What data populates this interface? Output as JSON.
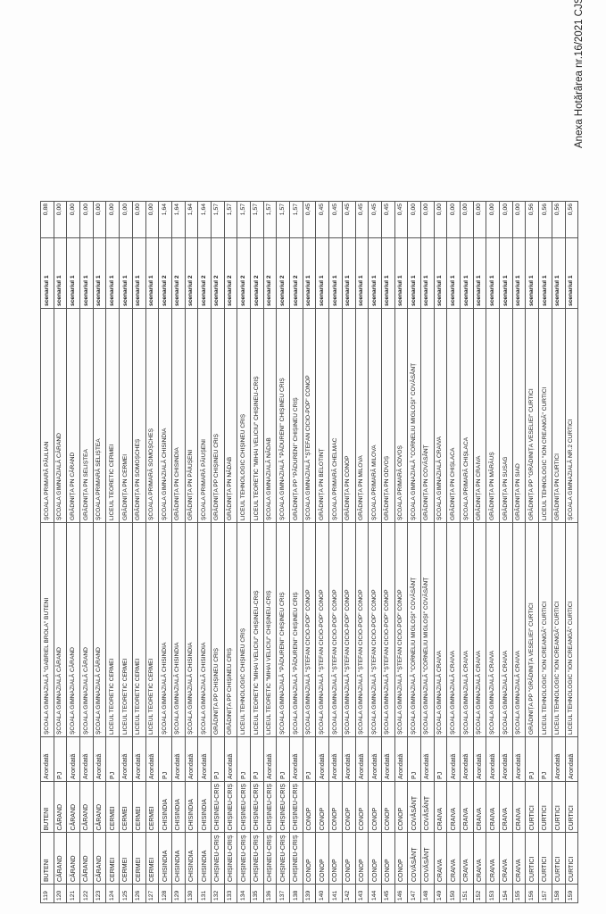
{
  "document": {
    "header_title": "Anexa Hotărârea nr.16/2021 CJSU Arad"
  },
  "table": {
    "rows": [
      [
        "119",
        "BUTENI",
        "BUTENI",
        "Arondată",
        "ȘCOALA GIMNAZIALĂ \"GABRIEL BROLA\" BUTENI",
        "ȘCOALA PRIMARĂ PĂULIAN",
        "scenariul 1",
        "0,88"
      ],
      [
        "120",
        "CĂRAND",
        "CĂRAND",
        "PJ",
        "ȘCOALA GIMNAZIALĂ CĂRAND",
        "ȘCOALA GIMNAZIALĂ CĂRAND",
        "scenariul 1",
        "0,00"
      ],
      [
        "121",
        "CĂRAND",
        "CĂRAND",
        "Arondată",
        "ȘCOALA GIMNAZIALĂ CĂRAND",
        "GRĂDINIȚA PN CĂRAND",
        "scenariul 1",
        "0,00"
      ],
      [
        "122",
        "CĂRAND",
        "CĂRAND",
        "Arondată",
        "ȘCOALA GIMNAZIALĂ CĂRAND",
        "GRĂDINIȚA PN SELIȘTEA",
        "scenariul 1",
        "0,00"
      ],
      [
        "123",
        "CĂRAND",
        "CĂRAND",
        "Arondată",
        "ȘCOALA GIMNAZIALĂ CĂRAND",
        "ȘCOALA PRIMARĂ SELIȘTEA",
        "scenariul 1",
        "0,00"
      ],
      [
        "124",
        "CERMEI",
        "CERMEI",
        "PJ",
        "LICEUL TEORETIC CERMEI",
        "LICEUL TEORETIC CERMEI",
        "scenariul 1",
        "0,00"
      ],
      [
        "125",
        "CERMEI",
        "CERMEI",
        "Arondată",
        "LICEUL TEORETIC CERMEI",
        "GRĂDINIȚA PN CERMEI",
        "scenariul 1",
        "0,00"
      ],
      [
        "126",
        "CERMEI",
        "CERMEI",
        "Arondată",
        "LICEUL TEORETIC CERMEI",
        "GRĂDINIȚA PN SOMOȘCHEȘ",
        "scenariul 1",
        "0,00"
      ],
      [
        "127",
        "CERMEI",
        "CERMEI",
        "Arondată",
        "LICEUL TEORETIC CERMEI",
        "ȘCOALA PRIMARĂ SOMOȘCHEȘ",
        "scenariul 1",
        "0,00"
      ],
      [
        "128",
        "CHISINDIA",
        "CHISINDIA",
        "PJ",
        "ȘCOALA GIMNAZIALĂ CHISINDIA",
        "ȘCOALA GIMNAZIALĂ CHISINDIA",
        "scenariul 2",
        "1,64"
      ],
      [
        "129",
        "CHISINDIA",
        "CHISINDIA",
        "Arondată",
        "ȘCOALA GIMNAZIALĂ CHISINDIA",
        "GRĂDINIȚA PN CHISINDIA",
        "scenariul 2",
        "1,64"
      ],
      [
        "130",
        "CHISINDIA",
        "CHISINDIA",
        "Arondată",
        "ȘCOALA GIMNAZIALĂ CHISINDIA",
        "GRĂDINIȚA PN PĂIUȘENI",
        "scenariul 2",
        "1,64"
      ],
      [
        "131",
        "CHISINDIA",
        "CHISINDIA",
        "Arondată",
        "ȘCOALA GIMNAZIALĂ CHISINDIA",
        "ȘCOALA PRIMARĂ PĂIUȘENI",
        "scenariul 2",
        "1,64"
      ],
      [
        "132",
        "CHIȘINEU-CRIȘ",
        "CHIȘINEU-CRIȘ",
        "PJ",
        "GRĂDINIȚA PP CHIȘINEU CRIȘ",
        "GRĂDINIȚA PP CHIȘINEU CRIȘ",
        "scenariul 2",
        "1,57"
      ],
      [
        "133",
        "CHIȘINEU-CRIȘ",
        "CHIȘINEU-CRIȘ",
        "Arondată",
        "GRĂDINIȚA PP CHIȘINEU CRIȘ",
        "GRĂDINIȚA PN NĂDAB",
        "scenariul 2",
        "1,57"
      ],
      [
        "134",
        "CHIȘINEU-CRIȘ",
        "CHIȘINEU-CRIȘ",
        "PJ",
        "LICEUL TEHNOLOGIC CHIȘINEU CRIȘ",
        "LICEUL TEHNOLOGIC CHIȘINEU CRIȘ",
        "scenariul 2",
        "1,57"
      ],
      [
        "135",
        "CHIȘINEU-CRIȘ",
        "CHIȘINEU-CRIȘ",
        "PJ",
        "LICEUL TEORETIC \"MIHAI VELICIU\" CHIȘINEU-CRIȘ",
        "LICEUL TEORETIC \"MIHAI VELICIU\" CHIȘINEU-CRIȘ",
        "scenariul 2",
        "1,57"
      ],
      [
        "136",
        "CHIȘINEU-CRIȘ",
        "CHIȘINEU-CRIȘ",
        "Arondată",
        "LICEUL TEORETIC \"MIHAI VELICIU\" CHIȘINEU-CRIȘ",
        "ȘCOALA GIMNAZIALĂ NĂDAB",
        "scenariul 2",
        "1,57"
      ],
      [
        "137",
        "CHIȘINEU-CRIȘ",
        "CHIȘINEU-CRIȘ",
        "PJ",
        "ȘCOALA GIMNAZIALĂ \"PĂDURENI\" CHIȘINEU CRIȘ",
        "ȘCOALA GIMNAZIALĂ \"PĂDURENI\" CHIȘINEU CRIȘ",
        "scenariul 2",
        "1,57"
      ],
      [
        "138",
        "CHIȘINEU-CRIȘ",
        "CHIȘINEU-CRIȘ",
        "Arondată",
        "ȘCOALA GIMNAZIALĂ \"PĂDURENI\" CHIȘINEU CRIȘ",
        "GRĂDINIȚA PP \"PĂDURENI\" CHIȘINEU CRIȘ",
        "scenariul 2",
        "1,57"
      ],
      [
        "139",
        "CONOP",
        "CONOP",
        "PJ",
        "ȘCOALA GIMNAZIALĂ \"ȘTEFAN CICIO-POP\" CONOP",
        "ȘCOALA GIMNAZIALĂ \"ȘTEFAN CICIO-POP\" CONOP",
        "scenariul 1",
        "0,45"
      ],
      [
        "140",
        "CONOP",
        "CONOP",
        "Arondată",
        "ȘCOALA GIMNAZIALĂ \"ȘTEFAN CICIO-POP\" CONOP",
        "GRĂDINIȚA PN BELOTINȚ",
        "scenariul 1",
        "0,45"
      ],
      [
        "141",
        "CONOP",
        "CONOP",
        "Arondată",
        "ȘCOALA GIMNAZIALĂ \"ȘTEFAN CICIO-POP\" CONOP",
        "ȘCOALA PRIMARĂ CHELMAC",
        "scenariul 1",
        "0,45"
      ],
      [
        "142",
        "CONOP",
        "CONOP",
        "Arondată",
        "ȘCOALA GIMNAZIALĂ \"ȘTEFAN CICIO-POP\" CONOP",
        "GRĂDINIȚA PN CONOP",
        "scenariul 1",
        "0,45"
      ],
      [
        "143",
        "CONOP",
        "CONOP",
        "Arondată",
        "ȘCOALA GIMNAZIALĂ \"ȘTEFAN CICIO-POP\" CONOP",
        "GRĂDINIȚA PN MILOVA",
        "scenariul 1",
        "0,45"
      ],
      [
        "144",
        "CONOP",
        "CONOP",
        "Arondată",
        "ȘCOALA GIMNAZIALĂ \"ȘTEFAN CICIO-POP\" CONOP",
        "ȘCOALA PRIMARĂ MILOVA",
        "scenariul 1",
        "0,45"
      ],
      [
        "145",
        "CONOP",
        "CONOP",
        "Arondată",
        "ȘCOALA GIMNAZIALĂ \"ȘTEFAN CICIO-POP\" CONOP",
        "GRĂDINIȚA PN ODVOȘ",
        "scenariul 1",
        "0,45"
      ],
      [
        "146",
        "CONOP",
        "CONOP",
        "Arondată",
        "ȘCOALA GIMNAZIALĂ \"ȘTEFAN CICIO-POP\" CONOP",
        "ȘCOALA PRIMARĂ ODVOȘ",
        "scenariul 1",
        "0,45"
      ],
      [
        "147",
        "COVĂSÂNȚ",
        "COVĂSÂNȚ",
        "PJ",
        "ȘCOALA GIMNAZIALĂ \"CORNELIU MIGLOȘI\" COVĂSÂNȚ",
        "ȘCOALA GIMNAZIALĂ \"CORNELIU MIGLOȘI\" COVĂSÂNȚ",
        "scenariul 1",
        "0,00"
      ],
      [
        "148",
        "COVĂSÂNȚ",
        "COVĂSÂNȚ",
        "Arondată",
        "ȘCOALA GIMNAZIALĂ \"CORNELIU MIGLOȘI\" COVĂSÂNȚ",
        "GRĂDINIȚA PN COVĂSÂNȚ",
        "scenariul 1",
        "0,00"
      ],
      [
        "149",
        "CRAIVA",
        "CRAIVA",
        "PJ",
        "ȘCOALA GIMNAZIALĂ CRAIVA",
        "ȘCOALA GIMNAZIALĂ CRAIVA",
        "scenariul 1",
        "0,00"
      ],
      [
        "150",
        "CRAIVA",
        "CRAIVA",
        "Arondată",
        "ȘCOALA GIMNAZIALĂ CRAIVA",
        "GRĂDINIȚA PN CHIȘLACA",
        "scenariul 1",
        "0,00"
      ],
      [
        "151",
        "CRAIVA",
        "CRAIVA",
        "Arondată",
        "ȘCOALA GIMNAZIALĂ CRAIVA",
        "ȘCOALA PRIMARĂ CHIȘLACA",
        "scenariul 1",
        "0,00"
      ],
      [
        "152",
        "CRAIVA",
        "CRAIVA",
        "Arondată",
        "ȘCOALA GIMNAZIALĂ CRAIVA",
        "GRĂDINIȚA PN CRAIVA",
        "scenariul 1",
        "0,00"
      ],
      [
        "153",
        "CRAIVA",
        "CRAIVA",
        "Arondată",
        "ȘCOALA GIMNAZIALĂ CRAIVA",
        "GRĂDINIȚA PN MĂRĂUȘ",
        "scenariul 1",
        "0,00"
      ],
      [
        "154",
        "CRAIVA",
        "CRAIVA",
        "Arondată",
        "ȘCOALA GIMNAZIALĂ CRAIVA",
        "GRĂDINIȚA PN SUSAG",
        "scenariul 1",
        "0,00"
      ],
      [
        "155",
        "CRAIVA",
        "CRAIVA",
        "Arondată",
        "ȘCOALA GIMNAZIALĂ CRAIVA",
        "GRĂDINIȚA PN SIAD",
        "scenariul 1",
        "0,00"
      ],
      [
        "156",
        "CURTICI",
        "CURTICI",
        "PJ",
        "GRĂDINIȚA PP \"GRĂDINIȚA VESELIEI\" CURTICI",
        "GRĂDINIȚA PP \"GRĂDINIȚA VESELIEI\" CURTICI",
        "scenariul 1",
        "0,56"
      ],
      [
        "157",
        "CURTICI",
        "CURTICI",
        "PJ",
        "LICEUL TEHNOLOGIC \"ION CREANGĂ\" CURTICI",
        "LICEUL TEHNOLOGIC \"ION CREANGĂ\" CURTICI",
        "scenariul 1",
        "0,56"
      ],
      [
        "158",
        "CURTICI",
        "CURTICI",
        "Arondată",
        "LICEUL TEHNOLOGIC \"ION CREANGĂ\" CURTICI",
        "GRĂDINIȚA PN CURTICI",
        "scenariul 1",
        "0,56"
      ],
      [
        "159",
        "CURTICI",
        "CURTICI",
        "Arondată",
        "LICEUL TEHNOLOGIC \"ION CREANGĂ\" CURTICI",
        "ȘCOALA GIMNAZIALĂ NR.2 CURTICI",
        "scenariul 1",
        "0,56"
      ]
    ]
  }
}
